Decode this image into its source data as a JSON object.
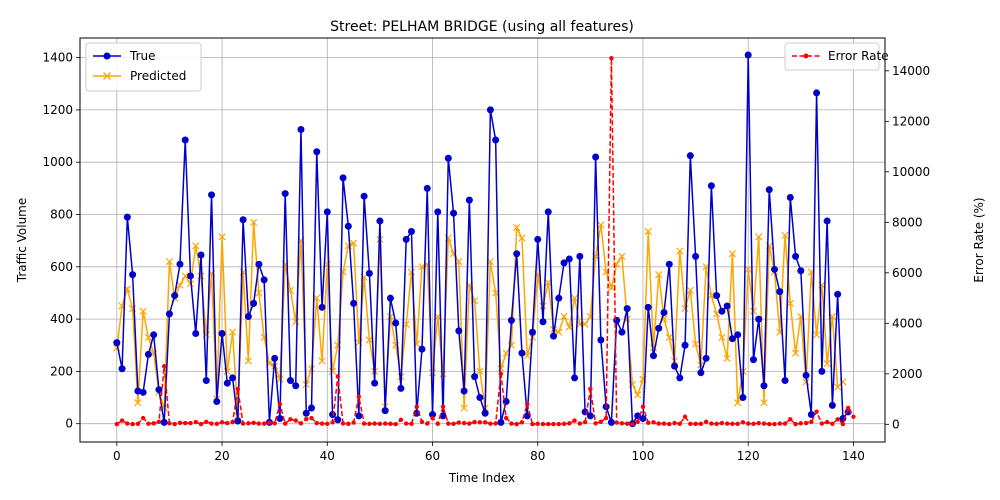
{
  "chart_data": {
    "type": "line",
    "title": "Street: PELHAM BRIDGE (using all features)",
    "xlabel": "Time Index",
    "ylabel": "Traffic Volume",
    "y2label": "Error Rate (%)",
    "xlim": [
      -7,
      146
    ],
    "ylim": [
      -70,
      1475
    ],
    "y2lim": [
      -700,
      15300
    ],
    "xticks": [
      0,
      20,
      40,
      60,
      80,
      100,
      120,
      140
    ],
    "yticks": [
      0,
      200,
      400,
      600,
      800,
      1000,
      1200,
      1400
    ],
    "y2ticks": [
      0,
      2000,
      4000,
      6000,
      8000,
      10000,
      12000,
      14000
    ],
    "grid": true,
    "legend_left": "top-left",
    "legend_right": "top-right",
    "colors": {
      "true": "#0000cc",
      "predicted": "#ffa500",
      "error": "#ff0000"
    },
    "series": [
      {
        "name": "True",
        "axis": "left",
        "values": [
          310,
          210,
          790,
          570,
          125,
          120,
          265,
          340,
          130,
          5,
          420,
          490,
          610,
          1085,
          565,
          345,
          645,
          165,
          875,
          85,
          345,
          155,
          175,
          10,
          780,
          410,
          460,
          610,
          550,
          5,
          250,
          20,
          880,
          165,
          145,
          1125,
          40,
          60,
          1040,
          445,
          810,
          35,
          15,
          940,
          755,
          460,
          30,
          870,
          575,
          155,
          775,
          50,
          480,
          385,
          135,
          705,
          735,
          40,
          285,
          900,
          35,
          810,
          30,
          1015,
          805,
          355,
          125,
          855,
          180,
          100,
          40,
          1200,
          1085,
          5,
          85,
          395,
          650,
          270,
          30,
          350,
          705,
          390,
          810,
          335,
          480,
          615,
          630,
          175,
          640,
          45,
          30,
          1020,
          320,
          65,
          5,
          395,
          350,
          440,
          0,
          30,
          20,
          445,
          260,
          365,
          425,
          610,
          220,
          175,
          300,
          1025,
          640,
          195,
          250,
          910,
          490,
          430,
          450,
          325,
          340,
          100,
          1410,
          245,
          400,
          145,
          895,
          590,
          505,
          165,
          865,
          640,
          585,
          185,
          35,
          1265,
          200,
          775,
          70,
          495,
          20,
          45
        ]
      },
      {
        "name": "Predicted",
        "axis": "left",
        "values": [
          290,
          450,
          515,
          440,
          80,
          430,
          330,
          270,
          120,
          60,
          620,
          480,
          530,
          565,
          535,
          680,
          565,
          340,
          575,
          95,
          715,
          200,
          350,
          30,
          580,
          240,
          770,
          500,
          330,
          230,
          220,
          170,
          610,
          510,
          390,
          700,
          150,
          210,
          480,
          240,
          610,
          200,
          300,
          580,
          680,
          690,
          310,
          560,
          320,
          200,
          705,
          65,
          410,
          300,
          180,
          380,
          580,
          305,
          600,
          610,
          195,
          410,
          190,
          710,
          650,
          620,
          60,
          530,
          470,
          200,
          60,
          620,
          500,
          210,
          270,
          300,
          750,
          710,
          260,
          330,
          570,
          450,
          540,
          360,
          350,
          410,
          370,
          480,
          380,
          380,
          410,
          640,
          760,
          580,
          520,
          610,
          640,
          400,
          150,
          110,
          170,
          735,
          290,
          570,
          400,
          330,
          240,
          660,
          440,
          510,
          305,
          225,
          600,
          490,
          420,
          330,
          250,
          650,
          80,
          200,
          590,
          430,
          715,
          80,
          680,
          580,
          350,
          720,
          460,
          270,
          410,
          160,
          580,
          340,
          530,
          230,
          410,
          140,
          160
        ]
      },
      {
        "name": "Error Rate",
        "axis": "right",
        "values": [
          10,
          150,
          30,
          10,
          20,
          250,
          25,
          40,
          100,
          2300,
          40,
          10,
          60,
          50,
          50,
          90,
          10,
          100,
          30,
          20,
          80,
          50,
          90,
          1400,
          30,
          40,
          60,
          30,
          30,
          70,
          40,
          800,
          30,
          200,
          150,
          40,
          210,
          250,
          50,
          30,
          20,
          80,
          1900,
          35,
          20,
          70,
          1100,
          30,
          20,
          30,
          20,
          30,
          20,
          10,
          180,
          30,
          20,
          700,
          100,
          30,
          250,
          20,
          700,
          30,
          20,
          70,
          50,
          30,
          90,
          80,
          80,
          25,
          35,
          2000,
          250,
          30,
          10,
          80,
          800,
          10,
          20,
          10,
          10,
          10,
          10,
          20,
          40,
          150,
          30,
          90,
          1400,
          40,
          100,
          250,
          14500,
          70,
          40,
          25,
          10,
          100,
          700,
          60,
          80,
          30,
          30,
          10,
          50,
          20,
          300,
          20,
          20,
          20,
          100,
          30,
          20,
          50,
          30,
          20,
          20,
          80,
          30,
          20,
          50,
          30,
          10,
          10,
          30,
          30,
          200,
          10,
          40,
          50,
          100,
          500,
          30,
          90,
          20,
          200,
          10,
          650,
          300
        ]
      }
    ]
  }
}
